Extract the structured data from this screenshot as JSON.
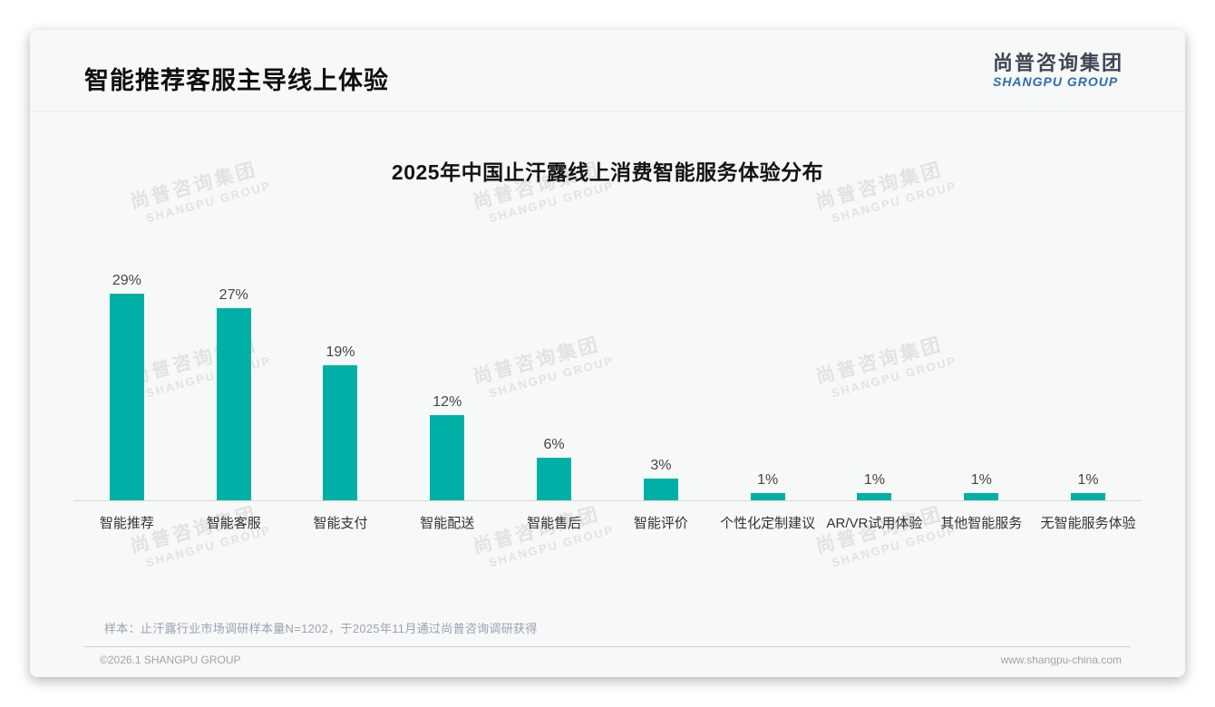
{
  "page": {
    "title": "智能推荐客服主导线上体验",
    "logo": {
      "cn": "尚普咨询集团",
      "en": "SHANGPU GROUP"
    },
    "watermark": {
      "cn": "尚普咨询集团",
      "en": "SHANGPU GROUP"
    },
    "footnote": "样本：止汗露行业市场调研样本量N=1202，于2025年11月通过尚普咨询调研获得",
    "footer": {
      "copyright": "©2026.1 SHANGPU GROUP",
      "website": "www.shangpu-china.com"
    }
  },
  "chart_data": {
    "type": "bar",
    "title": "2025年中国止汗露线上消费智能服务体验分布",
    "categories": [
      "智能推荐",
      "智能客服",
      "智能支付",
      "智能配送",
      "智能售后",
      "智能评价",
      "个性化定制建议",
      "AR/VR试用体验",
      "其他智能服务",
      "无智能服务体验"
    ],
    "values": [
      29,
      27,
      19,
      12,
      6,
      3,
      1,
      1,
      1,
      1
    ],
    "value_labels": [
      "29%",
      "27%",
      "19%",
      "12%",
      "6%",
      "3%",
      "1%",
      "1%",
      "1%",
      "1%"
    ],
    "unit": "%",
    "ylim": [
      0,
      30
    ],
    "grid": false,
    "legend": "none",
    "bar_color": "#00b0a6",
    "axis_color": "#d8d8d8"
  }
}
